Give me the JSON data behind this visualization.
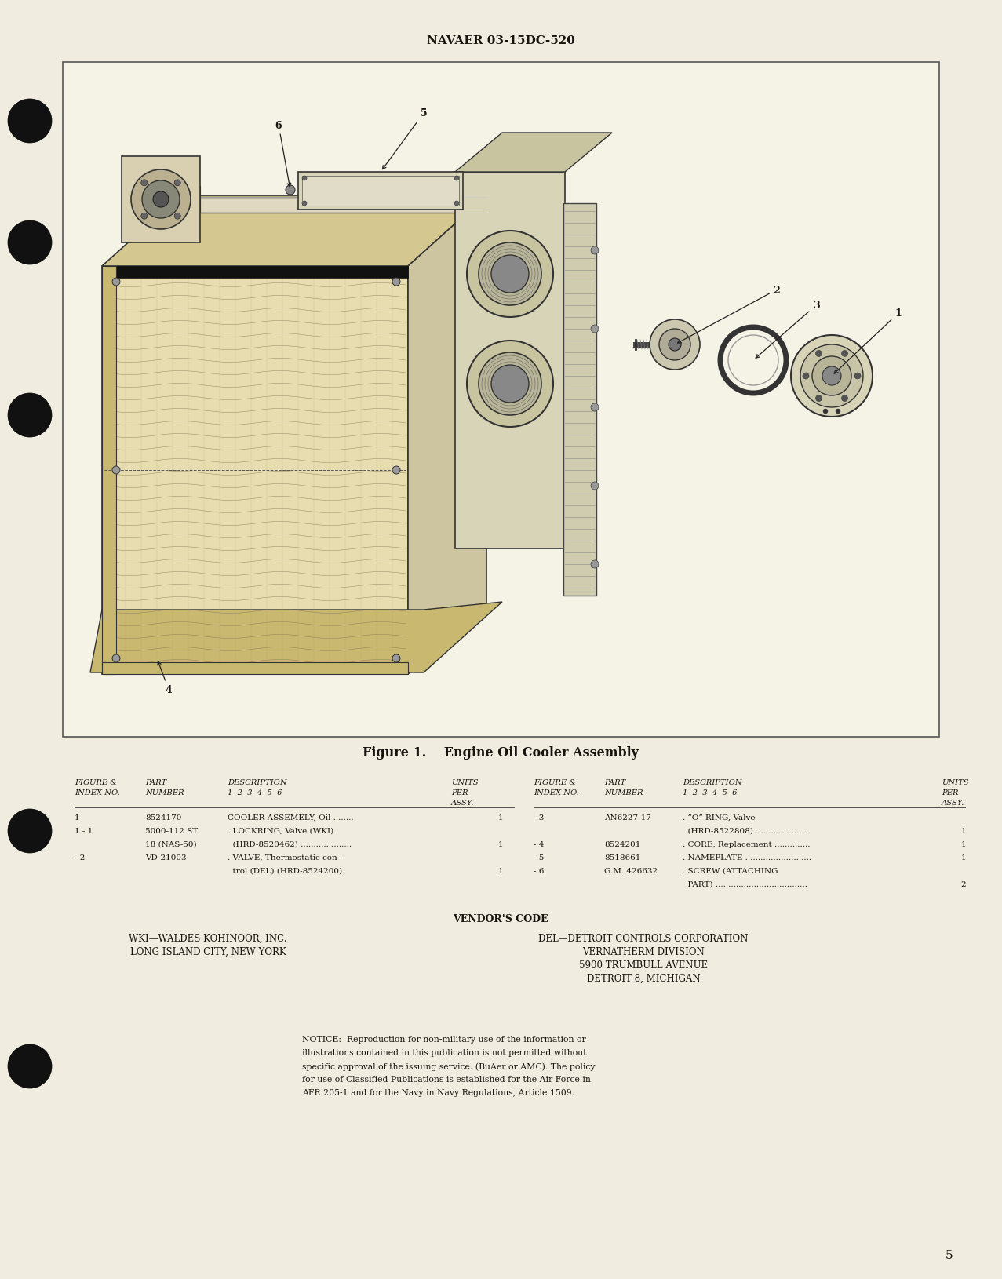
{
  "bg_color": "#f0ede0",
  "header_text": "NAVAER 03-15DC-520",
  "figure_caption": "Figure 1.    Engine Oil Cooler Assembly",
  "page_number": "5",
  "vendor_code_title": "VENDOR'S CODE",
  "vendor_left_name": "WKI—WALDES KOHINOOR, INC.",
  "vendor_left_addr": "LONG ISLAND CITY, NEW YORK",
  "vendor_right_name": "DEL—DETROIT CONTROLS CORPORATION",
  "vendor_right_lines": [
    "VERNATHERM DIVISION",
    "5900 TRUMBULL AVENUE",
    "DETROIT 8, MICHIGAN"
  ],
  "notice_lines": [
    "NOTICE:  Reproduction for non-military use of the information or",
    "illustrations contained in this publication is not permitted without",
    "specific approval of the issuing service. (BuAer or AMC). The policy",
    "for use of Classified Publications is established for the Air Force in",
    "AFR 205-1 and for the Navy in Navy Regulations, Article 1509."
  ],
  "left_rows": [
    [
      "1",
      "8524170",
      "COOLER ASSEMELY, Oil ........",
      "1"
    ],
    [
      "1 - 1",
      "5000-112 ST",
      ". LOCKRING, Valve (WKI)",
      ""
    ],
    [
      "",
      "18 (NAS-50)",
      "  (HRD-8520462) ....................",
      "1"
    ],
    [
      "- 2",
      "VD-21003",
      ". VALVE, Thermostatic con-",
      ""
    ],
    [
      "",
      "",
      "  trol (DEL) (HRD-8524200).",
      "1"
    ]
  ],
  "right_rows": [
    [
      "- 3",
      "AN6227-17",
      ". “O” RING, Valve",
      ""
    ],
    [
      "",
      "",
      "  (HRD-8522808) ....................",
      "1"
    ],
    [
      "- 4",
      "8524201",
      ". CORE, Replacement ..............",
      "1"
    ],
    [
      "- 5",
      "8518661",
      ". NAMEPLATE ..........................",
      "1"
    ],
    [
      "- 6",
      "G.M. 426632",
      ". SCREW (ATTACHING",
      ""
    ],
    [
      "",
      "",
      "  PART) ....................................",
      "2"
    ]
  ],
  "dark_color": "#1a1410",
  "box_fill": "#f5f2e6"
}
